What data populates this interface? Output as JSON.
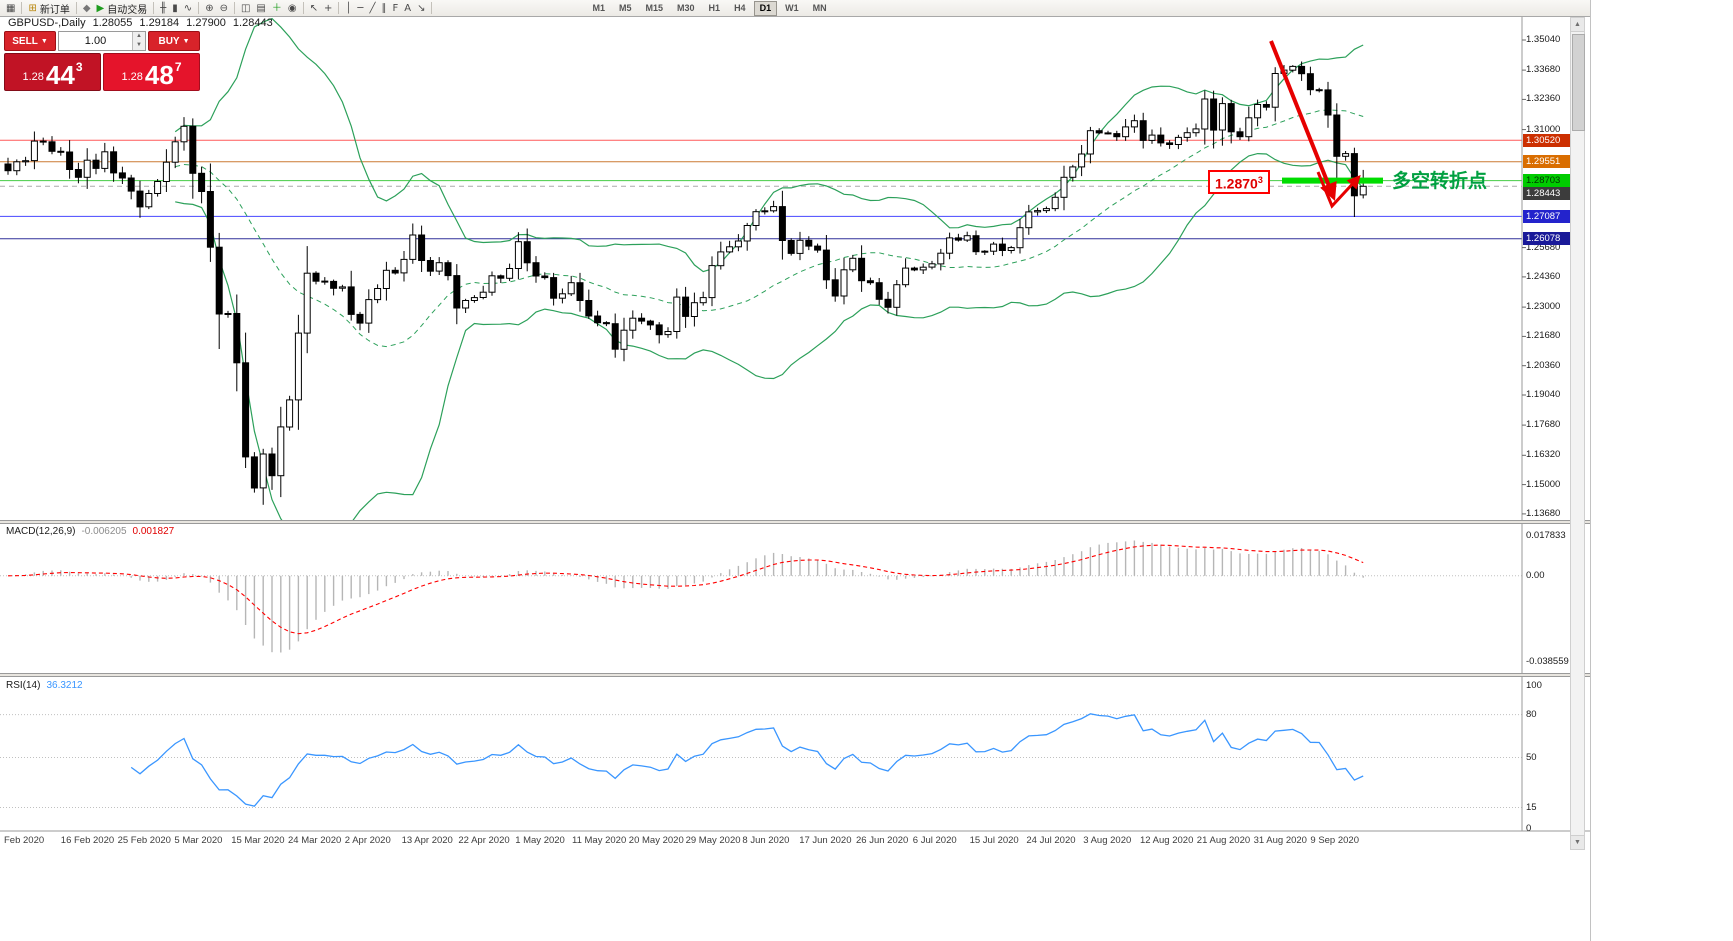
{
  "toolbar": {
    "items": [
      {
        "name": "new-chart-icon",
        "glyph": "▦"
      },
      {
        "name": "separator"
      },
      {
        "name": "new-order-button",
        "icon": "new-order-icon",
        "glyph": "⊞",
        "label": "新订单",
        "glyph_color": "#b8860b"
      },
      {
        "name": "separator"
      },
      {
        "name": "market-watch-icon",
        "glyph": "◆",
        "glyph_color": "#777777"
      },
      {
        "name": "autotrading-button",
        "icon": "autotrading-play-icon",
        "glyph": "▶",
        "label": "自动交易",
        "glyph_color": "#1f9d1f"
      },
      {
        "name": "separator"
      },
      {
        "name": "bar-chart-icon",
        "glyph": "╫"
      },
      {
        "name": "candlestick-chart-icon",
        "glyph": "▮"
      },
      {
        "name": "line-chart-icon",
        "glyph": "∿"
      },
      {
        "name": "separator"
      },
      {
        "name": "zoom-in-icon",
        "glyph": "⊕"
      },
      {
        "name": "zoom-out-icon",
        "glyph": "⊖"
      },
      {
        "name": "separator"
      },
      {
        "name": "tile-windows-icon",
        "glyph": "◫"
      },
      {
        "name": "templates-icon",
        "glyph": "▤"
      },
      {
        "name": "indicators-add-icon",
        "glyph": "＋",
        "glyph_color": "#1f9d1f"
      },
      {
        "name": "period-icon",
        "glyph": "◉"
      },
      {
        "name": "separator"
      },
      {
        "name": "cursor-icon",
        "glyph": "↖"
      },
      {
        "name": "crosshair-icon",
        "glyph": "+"
      },
      {
        "name": "separator"
      },
      {
        "name": "vertical-line-icon",
        "glyph": "│"
      },
      {
        "name": "horizontal-line-icon",
        "glyph": "─"
      },
      {
        "name": "trendline-icon",
        "glyph": "╱"
      },
      {
        "name": "equidistant-channel-icon",
        "glyph": "∥"
      },
      {
        "name": "fibonacci-icon",
        "glyph": "F"
      },
      {
        "name": "text-label-icon",
        "glyph": "A"
      },
      {
        "name": "arrows-icon",
        "glyph": "↘"
      },
      {
        "name": "separator"
      }
    ],
    "timeframes": [
      "M1",
      "M5",
      "M15",
      "M30",
      "H1",
      "H4",
      "D1",
      "W1",
      "MN"
    ],
    "active_timeframe": "D1"
  },
  "trade_panel": {
    "sell_label": "SELL",
    "buy_label": "BUY",
    "volume": "1.00",
    "bid": {
      "prefix": "1.28",
      "big": "44",
      "sup": "3"
    },
    "ask": {
      "prefix": "1.28",
      "big": "48",
      "sup": "7"
    }
  },
  "chart": {
    "symbol_label": "GBPUSD-,Daily",
    "open": "1.28055",
    "high": "1.29184",
    "low": "1.27900",
    "close": "1.28443",
    "y_ticks": [
      "1.35040",
      "1.33680",
      "1.32360",
      "1.31000",
      "1.25680",
      "1.24360",
      "1.23000",
      "1.21680",
      "1.20360",
      "1.19040",
      "1.17680",
      "1.16320",
      "1.15000",
      "1.13680"
    ],
    "levels": [
      {
        "price": 1.3052,
        "label": "1.30520",
        "line_color": "#ff5a5a",
        "box_bg": "#cc2f00",
        "box_fg": "#ffffff"
      },
      {
        "price": 1.29551,
        "label": "1.29551",
        "line_color": "#cc7a33",
        "box_bg": "#d96d00",
        "box_fg": "#ffffff"
      },
      {
        "price": 1.28703,
        "label": "1.28703",
        "line_color": "#44cc44",
        "box_bg": "#00cc00",
        "box_fg": "#003300"
      },
      {
        "price": 1.28443,
        "label": "1.28443",
        "line_color": "#aaaaaa",
        "dash": true,
        "box_bg": "#3c3c3c",
        "box_fg": "#ffffff"
      },
      {
        "price": 1.27087,
        "label": "1.27087",
        "line_color": "#4646ff",
        "box_bg": "#2323cc",
        "box_fg": "#ffffff"
      },
      {
        "price": 1.26078,
        "label": "1.26078",
        "line_color": "#30309a",
        "box_bg": "#1a1a99",
        "box_fg": "#ffffff"
      }
    ],
    "annotation": {
      "price_box": "1.2870",
      "price_box_sup": "3",
      "text": "多空转折点",
      "box_color": "#ff0000",
      "text_color": "#00a040",
      "bar_color": "#00dd00"
    }
  },
  "chart_data": {
    "type": "candlestick",
    "symbol": "GBPUSD",
    "timeframe": "Daily",
    "price_range": {
      "min": 1.1336,
      "max": 1.3612
    },
    "x_labels": [
      "Feb 2020",
      "16 Feb 2020",
      "25 Feb 2020",
      "5 Mar 2020",
      "15 Mar 2020",
      "24 Mar 2020",
      "2 Apr 2020",
      "13 Apr 2020",
      "22 Apr 2020",
      "1 May 2020",
      "11 May 2020",
      "20 May 2020",
      "29 May 2020",
      "8 Jun 2020",
      "17 Jun 2020",
      "26 Jun 2020",
      "6 Jul 2020",
      "15 Jul 2020",
      "24 Jul 2020",
      "3 Aug 2020",
      "12 Aug 2020",
      "21 Aug 2020",
      "31 Aug 2020",
      "9 Sep 2020"
    ],
    "closes": [
      1.2915,
      1.2955,
      1.296,
      1.3048,
      1.3045,
      1.3002,
      1.2999,
      1.292,
      1.2885,
      1.2962,
      1.2925,
      1.3,
      1.2905,
      1.2882,
      1.2823,
      1.2752,
      1.2812,
      1.2866,
      1.2953,
      1.3045,
      1.3115,
      1.2903,
      1.2821,
      1.257,
      1.2269,
      1.2271,
      1.2049,
      1.1625,
      1.1485,
      1.1638,
      1.154,
      1.176,
      1.1882,
      1.2183,
      1.2453,
      1.2417,
      1.2416,
      1.2385,
      1.2391,
      1.2267,
      1.2228,
      1.2334,
      1.2384,
      1.2466,
      1.2454,
      1.2515,
      1.2625,
      1.251,
      1.2462,
      1.25,
      1.2442,
      1.2296,
      1.233,
      1.2343,
      1.2367,
      1.2441,
      1.243,
      1.2474,
      1.2595,
      1.25,
      1.244,
      1.2433,
      1.234,
      1.236,
      1.241,
      1.233,
      1.226,
      1.223,
      1.2225,
      1.211,
      1.2196,
      1.225,
      1.2237,
      1.222,
      1.2176,
      1.219,
      1.2345,
      1.2258,
      1.232,
      1.2343,
      1.2487,
      1.2549,
      1.2572,
      1.2598,
      1.2668,
      1.273,
      1.2734,
      1.2753,
      1.26,
      1.2542,
      1.2601,
      1.2575,
      1.2557,
      1.2423,
      1.235,
      1.2468,
      1.252,
      1.2419,
      1.241,
      1.2335,
      1.2299,
      1.2401,
      1.2476,
      1.2468,
      1.248,
      1.2495,
      1.2543,
      1.2612,
      1.2602,
      1.2622,
      1.255,
      1.2552,
      1.2584,
      1.2555,
      1.2568,
      1.2658,
      1.2729,
      1.2735,
      1.2744,
      1.2795,
      1.2885,
      1.2932,
      1.299,
      1.3095,
      1.3085,
      1.3082,
      1.3068,
      1.3112,
      1.314,
      1.3051,
      1.3075,
      1.304,
      1.3033,
      1.3065,
      1.3086,
      1.3103,
      1.3238,
      1.3098,
      1.3217,
      1.309,
      1.3068,
      1.3153,
      1.3213,
      1.3201,
      1.3353,
      1.3368,
      1.3385,
      1.3352,
      1.328,
      1.3279,
      1.3166,
      1.298,
      1.2992,
      1.2802,
      1.28443
    ],
    "last_bar": {
      "open": 1.28055,
      "high": 1.29184,
      "low": 1.279,
      "close": 1.28443
    },
    "bollinger": {
      "period": 20,
      "deviation": 2,
      "color": "#2ca05a"
    },
    "macd": {
      "label": "MACD(12,26,9)",
      "fast": 12,
      "slow": 26,
      "signal": 9,
      "value_main": "-0.006205",
      "value_signal": "0.001827",
      "axis_labels": [
        "0.017833",
        "0.00",
        "-0.038559"
      ]
    },
    "rsi": {
      "label": "RSI(14)",
      "period": 14,
      "value": "36.3212",
      "axis_labels": [
        "100",
        "80",
        "50",
        "15",
        "0"
      ],
      "levels": [
        80,
        50,
        15
      ]
    }
  }
}
